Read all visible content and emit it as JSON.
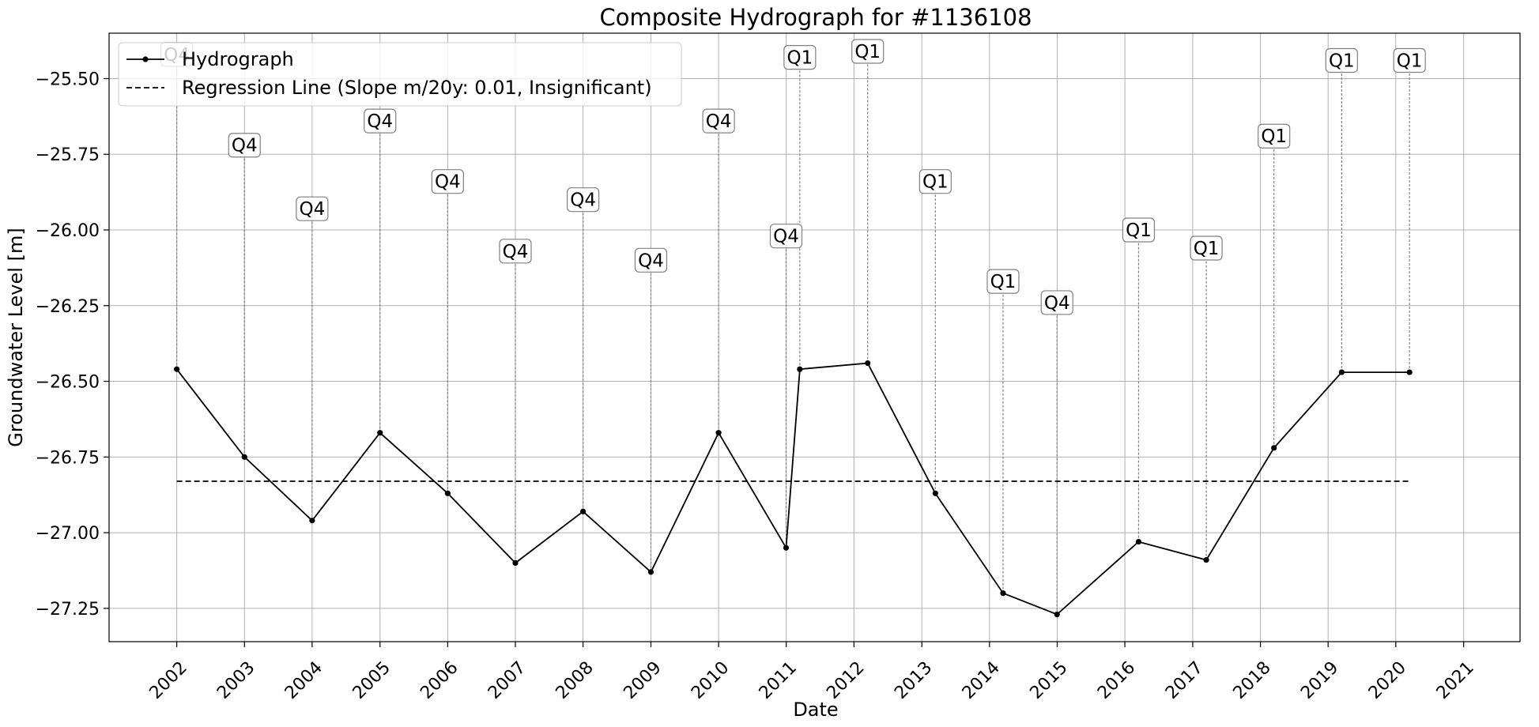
{
  "chart_data": {
    "type": "line",
    "title": "Composite Hydrograph for  #1136108",
    "xlabel": "Date",
    "ylabel": "Groundwater Level [m]",
    "xlim": [
      "2001-01-01",
      "2021-11-01"
    ],
    "ylim": [
      -27.36,
      -25.35
    ],
    "x_ticks": [
      "2002",
      "2003",
      "2004",
      "2005",
      "2006",
      "2007",
      "2008",
      "2009",
      "2010",
      "2011",
      "2012",
      "2013",
      "2014",
      "2015",
      "2016",
      "2017",
      "2018",
      "2019",
      "2020",
      "2021"
    ],
    "y_ticks": [
      -25.5,
      -25.75,
      -26.0,
      -26.25,
      -26.5,
      -26.75,
      -27.0,
      -27.25
    ],
    "y_tick_labels": [
      "−25.50",
      "−25.75",
      "−26.00",
      "−26.25",
      "−26.50",
      "−26.75",
      "−27.00",
      "−27.25"
    ],
    "grid": true,
    "legend_position": "top-left",
    "series": [
      {
        "name": "Hydrograph",
        "color": "#000000",
        "style": "solid-with-markers",
        "points": [
          {
            "x": "2002-01-01",
            "y": -26.46,
            "note": "Q4",
            "note_y": -25.42
          },
          {
            "x": "2003-01-01",
            "y": -26.75,
            "note": "Q4",
            "note_y": -25.72
          },
          {
            "x": "2004-01-01",
            "y": -26.96,
            "note": "Q4",
            "note_y": -25.93
          },
          {
            "x": "2005-01-01",
            "y": -26.67,
            "note": "Q4",
            "note_y": -25.64
          },
          {
            "x": "2006-01-01",
            "y": -26.87,
            "note": "Q4",
            "note_y": -25.84
          },
          {
            "x": "2007-01-01",
            "y": -27.1,
            "note": "Q4",
            "note_y": -26.07
          },
          {
            "x": "2008-01-01",
            "y": -26.93,
            "note": "Q4",
            "note_y": -25.9
          },
          {
            "x": "2009-01-01",
            "y": -27.13,
            "note": "Q4",
            "note_y": -26.1
          },
          {
            "x": "2010-01-01",
            "y": -26.67,
            "note": "Q4",
            "note_y": -25.64
          },
          {
            "x": "2010-12-31",
            "y": -27.05,
            "note": "Q4",
            "note_y": -26.02
          },
          {
            "x": "2011-03-15",
            "y": -26.46,
            "note": "Q1",
            "note_y": -25.43
          },
          {
            "x": "2012-03-15",
            "y": -26.44,
            "note": "Q1",
            "note_y": -25.41
          },
          {
            "x": "2013-03-15",
            "y": -26.87,
            "note": "Q1",
            "note_y": -25.84
          },
          {
            "x": "2014-03-15",
            "y": -27.2,
            "note": "Q1",
            "note_y": -26.17
          },
          {
            "x": "2014-12-31",
            "y": -27.27,
            "note": "Q4",
            "note_y": -26.24
          },
          {
            "x": "2016-03-15",
            "y": -27.03,
            "note": "Q1",
            "note_y": -26.0
          },
          {
            "x": "2017-03-15",
            "y": -27.09,
            "note": "Q1",
            "note_y": -26.06
          },
          {
            "x": "2018-03-15",
            "y": -26.72,
            "note": "Q1",
            "note_y": -25.69
          },
          {
            "x": "2019-03-15",
            "y": -26.47,
            "note": "Q1",
            "note_y": -25.44
          },
          {
            "x": "2020-03-15",
            "y": -26.47,
            "note": "Q1",
            "note_y": -25.44
          }
        ]
      },
      {
        "name": "Regression Line (Slope m/20y: 0.01, Insignificant)",
        "color": "#000000",
        "style": "dashed",
        "points": [
          {
            "x": "2002-01-01",
            "y": -26.83
          },
          {
            "x": "2020-03-15",
            "y": -26.83
          }
        ]
      }
    ]
  }
}
